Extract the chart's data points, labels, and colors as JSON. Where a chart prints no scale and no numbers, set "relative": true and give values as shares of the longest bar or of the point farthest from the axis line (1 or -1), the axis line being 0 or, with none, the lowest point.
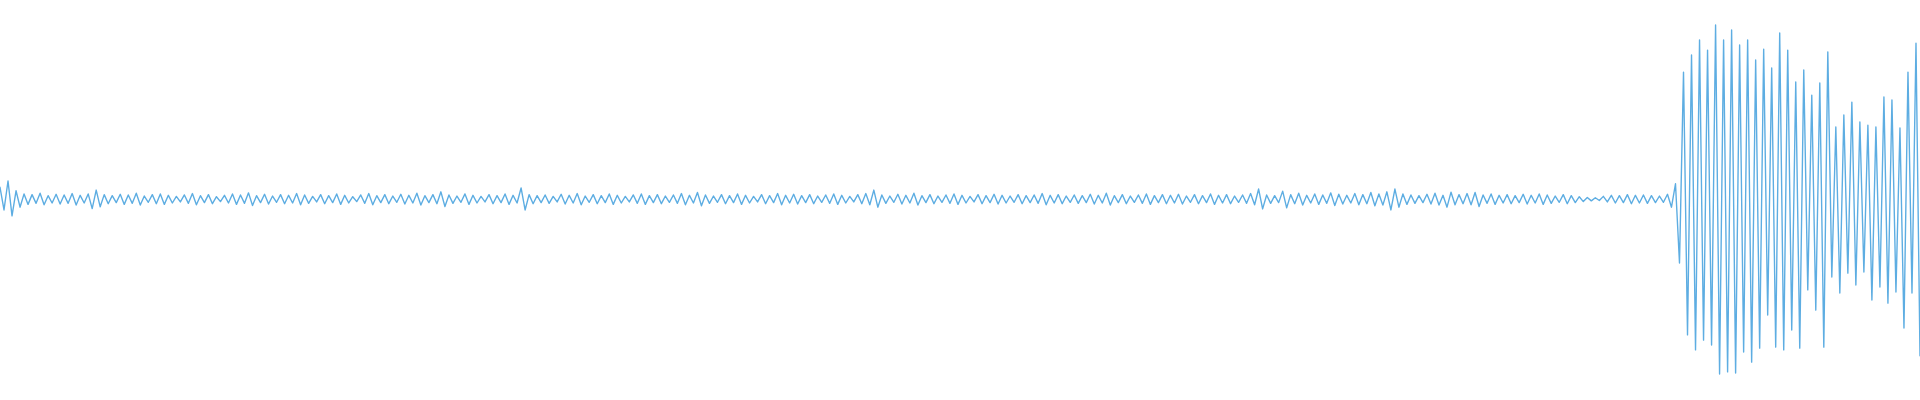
{
  "chart_data": {
    "type": "line",
    "relative": true,
    "color": "#5dade2",
    "categories": [
      null,
      null,
      null,
      null,
      null,
      null,
      null,
      null,
      null,
      null,
      null,
      null,
      null,
      null,
      null,
      null,
      null,
      null,
      null,
      null,
      null,
      null,
      null,
      null,
      null,
      null,
      null,
      null,
      null,
      null,
      null,
      null,
      null,
      null,
      null,
      null,
      null,
      null,
      null,
      null,
      null,
      null,
      null,
      null,
      null,
      null,
      null,
      null,
      null,
      null,
      null,
      null,
      null,
      null,
      null,
      null,
      null,
      null,
      null,
      null,
      null,
      null,
      null,
      null,
      null,
      null,
      null,
      null,
      null,
      null,
      null,
      null,
      null,
      null,
      null,
      null,
      null,
      null,
      null,
      null,
      null,
      null,
      null,
      null,
      null,
      null,
      null,
      null,
      null,
      null,
      null,
      null,
      null,
      null,
      null,
      null,
      null,
      null,
      null,
      null,
      null,
      null,
      null,
      null,
      null,
      null,
      null,
      null,
      null,
      null,
      null,
      null,
      null,
      null,
      null,
      null,
      null,
      null,
      null,
      null,
      null,
      null,
      null,
      null,
      null,
      null,
      null,
      null,
      null,
      null,
      null,
      null,
      null,
      null,
      null,
      null,
      null,
      null,
      null,
      null,
      null,
      null,
      null,
      null,
      null,
      null,
      null,
      null,
      null,
      null,
      null,
      null,
      null,
      null,
      null,
      null,
      null,
      null,
      null,
      null,
      null,
      null,
      null,
      null,
      null,
      null,
      null,
      null,
      null,
      null,
      null,
      null,
      null,
      null,
      null,
      null,
      null,
      null,
      null,
      null,
      null,
      null,
      null,
      null,
      null,
      null,
      null,
      null,
      null,
      null,
      null,
      null,
      null,
      null,
      null,
      null,
      null,
      null,
      null,
      null,
      null,
      null,
      null,
      null,
      null,
      null,
      null,
      null,
      null,
      null,
      null,
      null,
      null,
      null,
      null,
      null,
      null,
      null,
      null,
      null,
      null,
      null,
      null,
      null,
      null,
      null,
      null,
      null,
      null,
      null,
      null,
      null,
      null,
      null,
      null,
      null,
      null,
      null,
      null,
      null,
      null,
      null,
      null,
      null,
      null,
      null,
      null,
      null,
      null,
      null,
      null,
      null,
      null,
      null,
      null,
      null,
      null,
      null,
      null,
      null,
      null,
      null,
      null,
      null,
      null,
      null,
      null,
      null,
      null,
      null,
      null,
      null,
      null,
      null,
      null,
      null,
      null,
      null,
      null,
      null,
      null,
      null,
      null,
      null,
      null,
      null,
      null,
      null,
      null,
      null,
      null,
      null,
      null,
      null,
      null,
      null,
      null,
      null,
      null,
      null,
      null,
      null,
      null,
      null,
      null,
      null,
      null,
      null,
      null,
      null,
      null,
      null,
      null,
      null,
      null,
      null,
      null,
      null,
      null,
      null,
      null,
      null,
      null,
      null,
      null,
      null,
      null,
      null,
      null,
      null,
      null,
      null,
      null,
      null,
      null,
      null,
      null,
      null,
      null,
      null,
      null,
      null,
      null,
      null,
      null,
      null,
      null,
      null,
      null,
      null,
      null,
      null,
      null,
      null,
      null,
      null,
      null,
      null,
      null,
      null,
      null,
      null,
      null,
      null,
      null,
      null,
      null,
      null,
      null,
      null,
      null,
      null,
      null,
      null,
      null,
      null,
      null,
      null,
      null,
      null,
      null,
      null,
      null,
      null,
      null,
      null,
      null,
      null,
      null,
      null,
      null,
      null,
      null,
      null,
      null,
      null,
      null,
      null,
      null,
      null,
      null,
      null,
      null,
      null,
      null,
      null,
      null,
      null,
      null,
      null,
      null,
      null,
      null,
      null,
      null,
      null,
      null,
      null,
      null,
      null,
      null,
      null,
      null,
      null,
      null,
      null,
      null,
      null,
      null,
      null,
      null,
      null,
      null,
      null,
      null,
      null,
      null,
      null,
      null,
      null,
      null,
      null,
      null,
      null,
      null,
      null,
      null,
      null,
      null,
      null,
      null,
      null,
      null,
      null,
      null,
      null,
      null,
      null,
      null,
      null,
      null,
      null,
      null,
      null,
      null,
      null,
      null,
      null,
      null,
      null,
      null,
      null,
      null,
      null,
      null,
      null,
      null,
      null,
      null,
      null
    ],
    "values": [
      0.535,
      0.47,
      0.553,
      0.453,
      0.525,
      0.478,
      0.516,
      0.486,
      0.514,
      0.489,
      0.518,
      0.485,
      0.511,
      0.49,
      0.515,
      0.487,
      0.513,
      0.489,
      0.517,
      0.484,
      0.512,
      0.49,
      0.516,
      0.474,
      0.527,
      0.479,
      0.514,
      0.488,
      0.511,
      0.491,
      0.515,
      0.486,
      0.513,
      0.489,
      0.518,
      0.484,
      0.51,
      0.492,
      0.514,
      0.488,
      0.516,
      0.486,
      0.512,
      0.49,
      0.509,
      0.493,
      0.513,
      0.489,
      0.517,
      0.485,
      0.511,
      0.491,
      0.514,
      0.488,
      0.508,
      0.494,
      0.512,
      0.49,
      0.516,
      0.486,
      0.513,
      0.489,
      0.519,
      0.483,
      0.511,
      0.491,
      0.515,
      0.487,
      0.51,
      0.492,
      0.514,
      0.488,
      0.512,
      0.49,
      0.517,
      0.485,
      0.513,
      0.489,
      0.509,
      0.493,
      0.514,
      0.488,
      0.511,
      0.491,
      0.516,
      0.486,
      0.512,
      0.49,
      0.508,
      0.494,
      0.513,
      0.489,
      0.517,
      0.485,
      0.511,
      0.491,
      0.514,
      0.488,
      0.51,
      0.492,
      0.515,
      0.487,
      0.512,
      0.49,
      0.518,
      0.484,
      0.511,
      0.491,
      0.514,
      0.488,
      0.522,
      0.48,
      0.513,
      0.489,
      0.51,
      0.492,
      0.516,
      0.486,
      0.512,
      0.49,
      0.509,
      0.493,
      0.514,
      0.488,
      0.511,
      0.491,
      0.516,
      0.486,
      0.512,
      0.49,
      0.533,
      0.47,
      0.514,
      0.488,
      0.511,
      0.491,
      0.513,
      0.489,
      0.509,
      0.493,
      0.515,
      0.487,
      0.512,
      0.49,
      0.517,
      0.485,
      0.51,
      0.492,
      0.514,
      0.488,
      0.511,
      0.491,
      0.516,
      0.486,
      0.512,
      0.49,
      0.509,
      0.493,
      0.513,
      0.489,
      0.516,
      0.486,
      0.511,
      0.491,
      0.514,
      0.488,
      0.51,
      0.492,
      0.513,
      0.489,
      0.517,
      0.485,
      0.512,
      0.49,
      0.52,
      0.482,
      0.513,
      0.489,
      0.51,
      0.492,
      0.514,
      0.488,
      0.511,
      0.491,
      0.516,
      0.486,
      0.512,
      0.49,
      0.509,
      0.493,
      0.514,
      0.488,
      0.511,
      0.491,
      0.517,
      0.485,
      0.512,
      0.49,
      0.515,
      0.487,
      0.511,
      0.491,
      0.514,
      0.488,
      0.51,
      0.492,
      0.513,
      0.489,
      0.516,
      0.486,
      0.512,
      0.49,
      0.509,
      0.493,
      0.514,
      0.488,
      0.517,
      0.485,
      0.527,
      0.478,
      0.513,
      0.489,
      0.51,
      0.492,
      0.515,
      0.487,
      0.512,
      0.49,
      0.518,
      0.484,
      0.511,
      0.491,
      0.514,
      0.488,
      0.51,
      0.492,
      0.513,
      0.489,
      0.516,
      0.486,
      0.512,
      0.49,
      0.509,
      0.493,
      0.514,
      0.488,
      0.511,
      0.491,
      0.515,
      0.487,
      0.512,
      0.49,
      0.51,
      0.492,
      0.514,
      0.488,
      0.511,
      0.491,
      0.513,
      0.489,
      0.517,
      0.485,
      0.512,
      0.49,
      0.514,
      0.488,
      0.51,
      0.492,
      0.513,
      0.489,
      0.511,
      0.491,
      0.515,
      0.487,
      0.512,
      0.49,
      0.518,
      0.484,
      0.511,
      0.491,
      0.514,
      0.488,
      0.51,
      0.492,
      0.513,
      0.489,
      0.516,
      0.486,
      0.511,
      0.491,
      0.514,
      0.488,
      0.512,
      0.49,
      0.515,
      0.487,
      0.51,
      0.492,
      0.514,
      0.488,
      0.511,
      0.491,
      0.516,
      0.486,
      0.512,
      0.49,
      0.514,
      0.488,
      0.51,
      0.492,
      0.513,
      0.489,
      0.517,
      0.485,
      0.53,
      0.473,
      0.513,
      0.489,
      0.511,
      0.491,
      0.524,
      0.476,
      0.514,
      0.488,
      0.518,
      0.484,
      0.512,
      0.49,
      0.516,
      0.486,
      0.513,
      0.489,
      0.519,
      0.483,
      0.515,
      0.487,
      0.512,
      0.49,
      0.517,
      0.485,
      0.514,
      0.488,
      0.52,
      0.482,
      0.516,
      0.484,
      0.522,
      0.47,
      0.53,
      0.478,
      0.516,
      0.486,
      0.513,
      0.489,
      0.511,
      0.491,
      0.515,
      0.487,
      0.518,
      0.484,
      0.512,
      0.478,
      0.521,
      0.485,
      0.514,
      0.488,
      0.517,
      0.485,
      0.52,
      0.48,
      0.513,
      0.489,
      0.516,
      0.486,
      0.512,
      0.49,
      0.514,
      0.488,
      0.511,
      0.491,
      0.515,
      0.487,
      0.512,
      0.49,
      0.516,
      0.486,
      0.513,
      0.489,
      0.51,
      0.492,
      0.514,
      0.488,
      0.511,
      0.491,
      0.508,
      0.494,
      0.506,
      0.496,
      0.505,
      0.497,
      0.509,
      0.493,
      0.512,
      0.49,
      0.511,
      0.491,
      0.514,
      0.488,
      0.512,
      0.49,
      0.513,
      0.489,
      0.511,
      0.491,
      0.51,
      0.492,
      0.515,
      0.478,
      0.545,
      0.318,
      0.865,
      0.112,
      0.914,
      0.069,
      0.957,
      0.097,
      0.928,
      0.083,
      1.0,
      0.0,
      0.957,
      0.006,
      0.986,
      0.003,
      0.943,
      0.063,
      0.957,
      0.034,
      0.9,
      0.074,
      0.931,
      0.169,
      0.877,
      0.077,
      0.977,
      0.069,
      0.928,
      0.126,
      0.837,
      0.074,
      0.871,
      0.241,
      0.799,
      0.183,
      0.834,
      0.077,
      0.923,
      0.278,
      0.708,
      0.232,
      0.742,
      0.289,
      0.779,
      0.255,
      0.722,
      0.292,
      0.713,
      0.212,
      0.708,
      0.249,
      0.794,
      0.203,
      0.785,
      0.235,
      0.705,
      0.132,
      0.865,
      0.232,
      0.948,
      0.052
    ]
  }
}
